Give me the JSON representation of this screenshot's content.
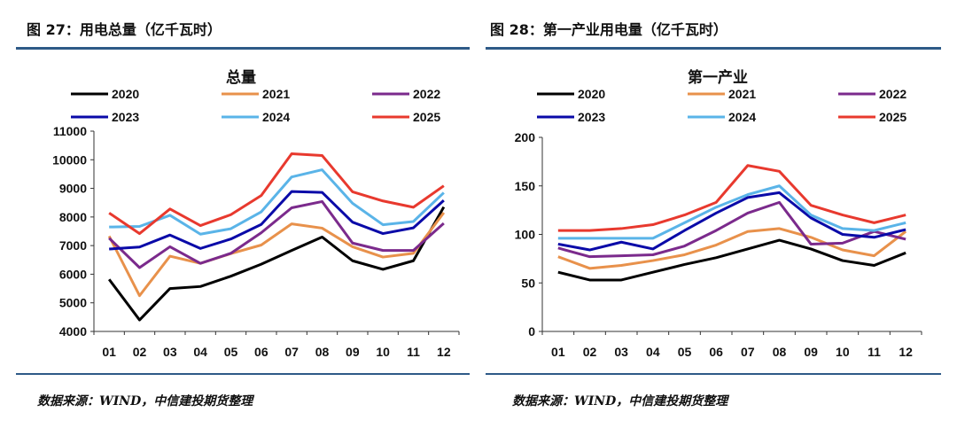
{
  "panels": [
    {
      "figure_title": "图 27：用电总量（亿千瓦时）",
      "source": "数据来源：WIND，中信建投期货整理"
    },
    {
      "figure_title": "图 28：第一产业用电量（亿千瓦时）",
      "source": "数据来源：WIND，中信建投期货整理"
    }
  ],
  "chart_data": [
    {
      "type": "line",
      "title": "总量",
      "xlabel": "",
      "ylabel": "",
      "ylim": [
        4000,
        11000
      ],
      "yticks": [
        4000,
        5000,
        6000,
        7000,
        8000,
        9000,
        10000,
        11000
      ],
      "grid": false,
      "legend": "top",
      "categories": [
        "01",
        "02",
        "03",
        "04",
        "05",
        "06",
        "07",
        "08",
        "09",
        "10",
        "11",
        "12"
      ],
      "series": [
        {
          "name": "2020",
          "color": "#000000",
          "values": [
            5820,
            4400,
            5500,
            5570,
            5930,
            6350,
            6830,
            7300,
            6470,
            6170,
            6470,
            8350
          ]
        },
        {
          "name": "2021",
          "color": "#e8914b",
          "values": [
            7330,
            5250,
            6630,
            6380,
            6720,
            7020,
            7760,
            7610,
            6960,
            6600,
            6730,
            8150
          ]
        },
        {
          "name": "2022",
          "color": "#7b2a8c",
          "values": [
            7260,
            6230,
            6960,
            6380,
            6730,
            7450,
            8320,
            8540,
            7090,
            6830,
            6830,
            7780
          ]
        },
        {
          "name": "2023",
          "color": "#0a0aa8",
          "values": [
            6880,
            6950,
            7370,
            6900,
            7230,
            7740,
            8890,
            8860,
            7820,
            7420,
            7620,
            8580
          ]
        },
        {
          "name": "2024",
          "color": "#5ab4e8",
          "values": [
            7650,
            7670,
            8060,
            7400,
            7590,
            8180,
            9400,
            9650,
            8480,
            7730,
            7840,
            8850
          ]
        },
        {
          "name": "2025",
          "color": "#e8392e",
          "values": [
            8140,
            7420,
            8280,
            7700,
            8080,
            8750,
            10210,
            10150,
            8880,
            8560,
            8340,
            9090
          ]
        }
      ]
    },
    {
      "type": "line",
      "title": "第一产业",
      "xlabel": "",
      "ylabel": "",
      "ylim": [
        0,
        200
      ],
      "yticks": [
        0,
        50,
        100,
        150,
        200
      ],
      "grid": false,
      "legend": "top",
      "categories": [
        "01",
        "02",
        "03",
        "04",
        "05",
        "06",
        "07",
        "08",
        "09",
        "10",
        "11",
        "12"
      ],
      "series": [
        {
          "name": "2020",
          "color": "#000000",
          "values": [
            61,
            53,
            53,
            61,
            69,
            76,
            85,
            94,
            85,
            73,
            68,
            81
          ]
        },
        {
          "name": "2021",
          "color": "#e8914b",
          "values": [
            77,
            65,
            68,
            73,
            79,
            89,
            103,
            106,
            97,
            84,
            78,
            103
          ]
        },
        {
          "name": "2022",
          "color": "#7b2a8c",
          "values": [
            86,
            77,
            78,
            79,
            88,
            104,
            122,
            133,
            90,
            91,
            103,
            95
          ]
        },
        {
          "name": "2023",
          "color": "#0a0aa8",
          "values": [
            90,
            84,
            92,
            85,
            104,
            122,
            138,
            143,
            117,
            100,
            97,
            105
          ]
        },
        {
          "name": "2024",
          "color": "#5ab4e8",
          "values": [
            96,
            96,
            96,
            96,
            112,
            128,
            141,
            150,
            120,
            106,
            104,
            112
          ]
        },
        {
          "name": "2025",
          "color": "#e8392e",
          "values": [
            104,
            104,
            106,
            110,
            120,
            133,
            171,
            165,
            130,
            120,
            112,
            120
          ]
        }
      ]
    }
  ]
}
